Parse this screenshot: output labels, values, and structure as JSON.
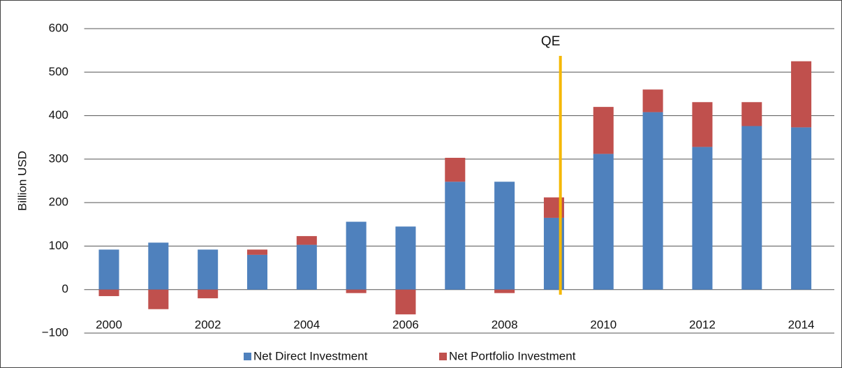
{
  "chart_data": {
    "type": "bar",
    "stacked": true,
    "y_label": "Billion USD",
    "categories": [
      "2000",
      null,
      "2002",
      null,
      "2004",
      null,
      "2006",
      null,
      "2008",
      null,
      "2010",
      null,
      "2012",
      null,
      "2014"
    ],
    "series": [
      {
        "name": "Net Direct Investment",
        "color": "#4f81bd",
        "values": [
          92,
          108,
          92,
          80,
          103,
          156,
          145,
          248,
          248,
          165,
          312,
          408,
          328,
          376,
          373
        ]
      },
      {
        "name": "Net Portfolio Investment",
        "color": "#c0504d",
        "values": [
          -15,
          -45,
          -20,
          12,
          20,
          -8,
          -57,
          55,
          -8,
          47,
          108,
          52,
          103,
          55,
          152
        ]
      }
    ],
    "ylim": [
      -100,
      600
    ],
    "yticks": [
      {
        "value": -100,
        "label": "−100"
      },
      0,
      100,
      200,
      300,
      400,
      500,
      600
    ],
    "grid": true,
    "legend": "bottom",
    "annotation": {
      "text": "QE",
      "color": "#f5b800"
    }
  }
}
